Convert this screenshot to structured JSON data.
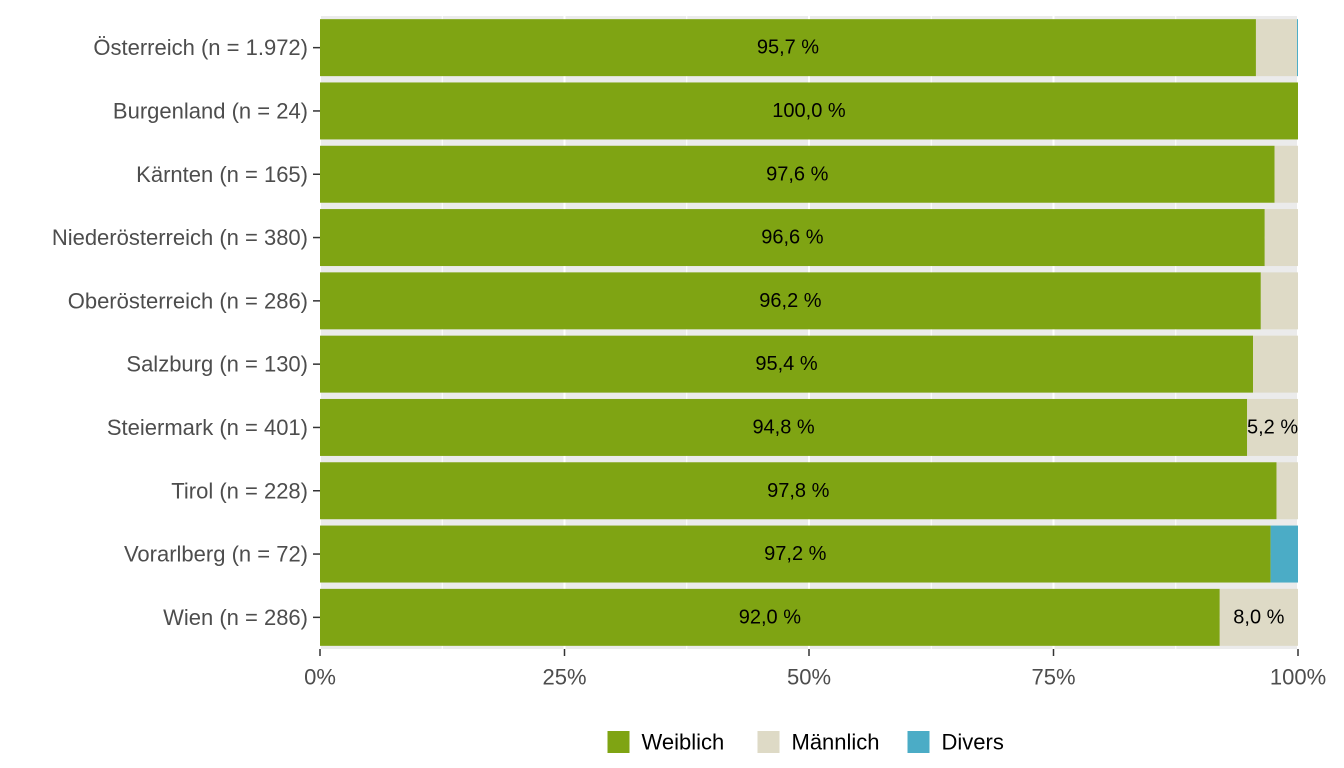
{
  "chart_data": {
    "type": "bar",
    "orientation": "horizontal",
    "stacked": true,
    "categories": [
      "Österreich (n = 1.972)",
      "Burgenland (n = 24)",
      "Kärnten (n = 165)",
      "Niederösterreich (n = 380)",
      "Oberösterreich (n = 286)",
      "Salzburg (n = 130)",
      "Steiermark (n = 401)",
      "Tirol (n = 228)",
      "Vorarlberg (n = 72)",
      "Wien (n = 286)"
    ],
    "series": [
      {
        "name": "Weiblich",
        "color": "#7fa413",
        "values": [
          95.7,
          100.0,
          97.6,
          96.6,
          96.2,
          95.4,
          94.8,
          97.8,
          97.2,
          92.0
        ],
        "labels": [
          "95,7 %",
          "100,0 %",
          "97,6 %",
          "96,6 %",
          "96,2 %",
          "95,4 %",
          "94,8 %",
          "97,8 %",
          "97,2 %",
          "92,0 %"
        ]
      },
      {
        "name": "Männlich",
        "color": "#dedac6",
        "values": [
          4.2,
          0.0,
          2.4,
          3.4,
          3.8,
          4.6,
          5.2,
          2.2,
          0.0,
          8.0
        ],
        "labels": [
          "",
          "",
          "",
          "",
          "",
          "",
          "5,2 %",
          "",
          "",
          "8,0 %"
        ]
      },
      {
        "name": "Divers",
        "color": "#4bacc6",
        "values": [
          0.1,
          0.0,
          0.0,
          0.0,
          0.0,
          0.0,
          0.0,
          0.0,
          2.8,
          0.0
        ],
        "labels": [
          "",
          "",
          "",
          "",
          "",
          "",
          "",
          "",
          "",
          ""
        ]
      }
    ],
    "x_ticks": [
      0,
      25,
      50,
      75,
      100
    ],
    "x_tick_labels": [
      "0%",
      "25%",
      "50%",
      "75%",
      "100%"
    ],
    "xlim": [
      0,
      100
    ],
    "title": "",
    "xlabel": "",
    "ylabel": "",
    "grid": true,
    "legend_position": "bottom",
    "panel_background": "#ebebeb"
  }
}
